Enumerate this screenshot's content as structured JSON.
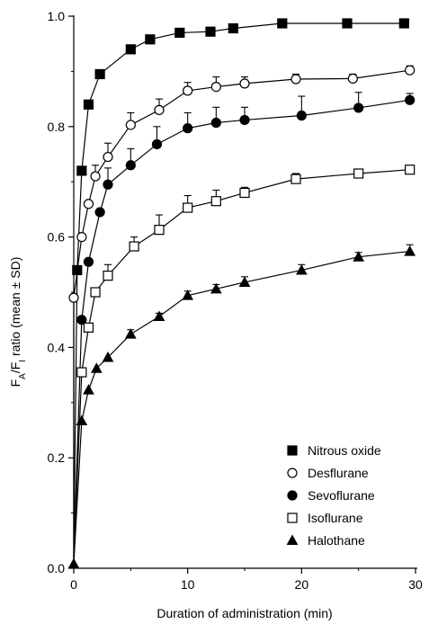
{
  "chart_data": {
    "type": "line",
    "xlabel": "Duration of administration (min)",
    "ylabel_parts": [
      "F",
      "A",
      "/F",
      "I",
      " ratio (mean ± SD)"
    ],
    "xlim": [
      0,
      30
    ],
    "ylim": [
      0,
      1.0
    ],
    "x_ticks": [
      "0",
      "10",
      "20",
      "30"
    ],
    "y_ticks": [
      "0.0",
      "0.2",
      "0.4",
      "0.6",
      "0.8",
      "1.0"
    ],
    "grid": false,
    "legend_position": "bottom-right",
    "series": [
      {
        "name": "Nitrous oxide",
        "marker": "square-filled",
        "x": [
          0.3,
          0.7,
          1.3,
          2.3,
          5,
          6.7,
          9.3,
          12,
          14,
          18.3,
          24,
          29
        ],
        "y": [
          0.54,
          0.72,
          0.84,
          0.895,
          0.94,
          0.958,
          0.97,
          0.972,
          0.978,
          0.987,
          0.987,
          0.987
        ],
        "sd_upper": []
      },
      {
        "name": "Desflurane",
        "marker": "circle-open",
        "x": [
          0,
          0.7,
          1.3,
          1.9,
          3,
          5,
          7.5,
          10,
          12.5,
          15,
          19.5,
          24.5,
          29.5
        ],
        "y": [
          0.49,
          0.6,
          0.66,
          0.71,
          0.745,
          0.803,
          0.83,
          0.865,
          0.872,
          0.878,
          0.886,
          0.887,
          0.902
        ],
        "sd_upper": [
          null,
          null,
          null,
          0.73,
          0.77,
          0.825,
          0.85,
          0.88,
          0.89,
          0.89,
          0.895,
          0.895,
          0.91
        ]
      },
      {
        "name": "Sevoflurane",
        "marker": "circle-filled",
        "x": [
          0.7,
          1.3,
          2.3,
          3,
          5,
          7.3,
          10,
          12.5,
          15,
          20,
          25,
          29.5
        ],
        "y": [
          0.45,
          0.555,
          0.645,
          0.695,
          0.73,
          0.768,
          0.797,
          0.807,
          0.812,
          0.82,
          0.834,
          0.848
        ],
        "sd_upper": [
          null,
          null,
          null,
          0.725,
          0.76,
          0.8,
          0.825,
          0.835,
          0.835,
          0.855,
          0.862,
          0.86
        ]
      },
      {
        "name": "Isoflurane",
        "marker": "square-open",
        "x": [
          0.7,
          1.3,
          1.9,
          3,
          5.3,
          7.5,
          10,
          12.5,
          15,
          19.5,
          25,
          29.5
        ],
        "y": [
          0.355,
          0.436,
          0.5,
          0.53,
          0.583,
          0.613,
          0.653,
          0.665,
          0.68,
          0.705,
          0.715,
          0.722
        ],
        "sd_upper": [
          null,
          null,
          null,
          0.55,
          0.6,
          0.64,
          0.675,
          0.685,
          0.69,
          0.715,
          0.72,
          0.725
        ]
      },
      {
        "name": "Halothane",
        "marker": "triangle-filled",
        "x": [
          0,
          0.7,
          1.3,
          2,
          3,
          5,
          7.5,
          10,
          12.5,
          15,
          20,
          25,
          29.5
        ],
        "y": [
          0.008,
          0.267,
          0.323,
          0.362,
          0.382,
          0.424,
          0.456,
          0.494,
          0.506,
          0.518,
          0.54,
          0.564,
          0.574
        ],
        "sd_upper": [
          null,
          null,
          null,
          null,
          null,
          0.432,
          0.462,
          0.502,
          0.514,
          0.528,
          0.55,
          0.572,
          0.586
        ]
      }
    ]
  }
}
